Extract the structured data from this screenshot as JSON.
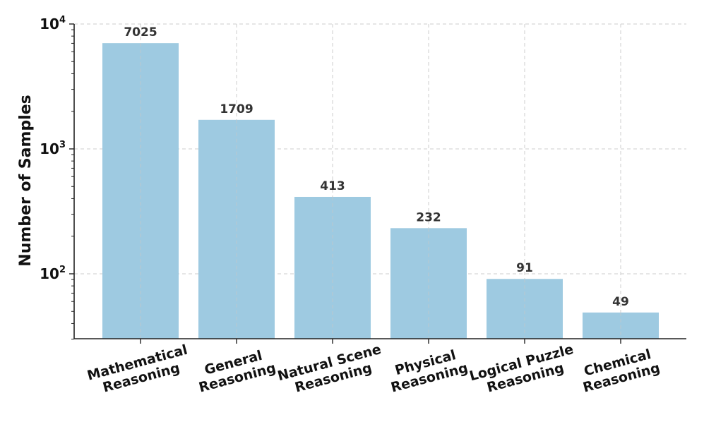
{
  "chart_data": {
    "type": "bar",
    "categories": [
      [
        "Mathematical",
        "Reasoning"
      ],
      [
        "General",
        "Reasoning"
      ],
      [
        "Natural Scene",
        "Reasoning"
      ],
      [
        "Physical",
        "Reasoning"
      ],
      [
        "Logical Puzzle",
        "Reasoning"
      ],
      [
        "Chemical",
        "Reasoning"
      ]
    ],
    "values": [
      7025,
      1709,
      413,
      232,
      91,
      49
    ],
    "data_labels": [
      "7025",
      "1709",
      "413",
      "232",
      "91",
      "49"
    ],
    "ylabel": "Number of Samples",
    "xlabel": "",
    "yscale": "log",
    "ylim": [
      30,
      10000
    ],
    "yticks": [
      {
        "value": 100,
        "base": "10",
        "exp": "2"
      },
      {
        "value": 1000,
        "base": "10",
        "exp": "3"
      },
      {
        "value": 10000,
        "base": "10",
        "exp": "4"
      }
    ],
    "grid": true,
    "bar_color": "#9ecae1",
    "grid_color": "#cccccc",
    "axis_color": "#222222"
  }
}
